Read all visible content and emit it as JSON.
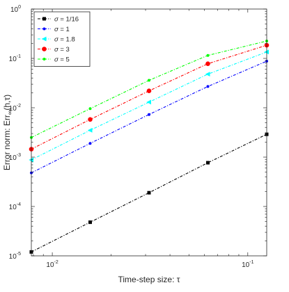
{
  "chart_data": {
    "type": "line",
    "xscale": "log",
    "yscale": "log",
    "xlabel": "Time-step size: τ",
    "ylabel": "Error norm: Err∞(h,τ)",
    "ylabel_main": "Error norm: Err",
    "ylabel_sub": "∞",
    "ylabel_tail": "(h,τ)",
    "xlim": [
      0.0078125,
      0.125
    ],
    "ylim": [
      1e-05,
      1
    ],
    "grid": false,
    "legend_position": "top-left",
    "x_ticks": [
      {
        "value": 0.01,
        "base": "10",
        "exp": "-2"
      },
      {
        "value": 0.1,
        "base": "10",
        "exp": "-1"
      }
    ],
    "y_ticks": [
      {
        "value": 1e-05,
        "base": "10",
        "exp": "-5"
      },
      {
        "value": 0.0001,
        "base": "10",
        "exp": "-4"
      },
      {
        "value": 0.001,
        "base": "10",
        "exp": "-3"
      },
      {
        "value": 0.01,
        "base": "10",
        "exp": "-2"
      },
      {
        "value": 0.1,
        "base": "10",
        "exp": "-1"
      },
      {
        "value": 1,
        "base": "10",
        "exp": "0"
      }
    ],
    "x": [
      0.0078125,
      0.015625,
      0.03125,
      0.0625,
      0.125
    ],
    "series": [
      {
        "name": "σ = 1/16",
        "legend_sym": "σ",
        "legend_rest": " = 1/16",
        "color": "#000000",
        "marker": "square",
        "values": [
          1.2e-05,
          4.8e-05,
          0.00019,
          0.00077,
          0.0029
        ]
      },
      {
        "name": "σ = 1",
        "legend_sym": "σ",
        "legend_rest": " = 1",
        "color": "#0000ff",
        "marker": "point",
        "values": [
          0.00048,
          0.0019,
          0.0073,
          0.027,
          0.088
        ]
      },
      {
        "name": "σ = 1.8",
        "legend_sym": "σ",
        "legend_rest": " = 1.8",
        "color": "#00ffff",
        "marker": "triangle-left",
        "values": [
          0.00088,
          0.0035,
          0.013,
          0.048,
          0.135
        ]
      },
      {
        "name": "σ = 3",
        "legend_sym": "σ",
        "legend_rest": " = 3",
        "color": "#ff0000",
        "marker": "circle",
        "values": [
          0.00145,
          0.0058,
          0.022,
          0.078,
          0.185
        ]
      },
      {
        "name": "σ = 5",
        "legend_sym": "σ",
        "legend_rest": " = 5",
        "color": "#00ff00",
        "marker": "point",
        "values": [
          0.0025,
          0.0096,
          0.036,
          0.115,
          0.225
        ]
      }
    ]
  }
}
